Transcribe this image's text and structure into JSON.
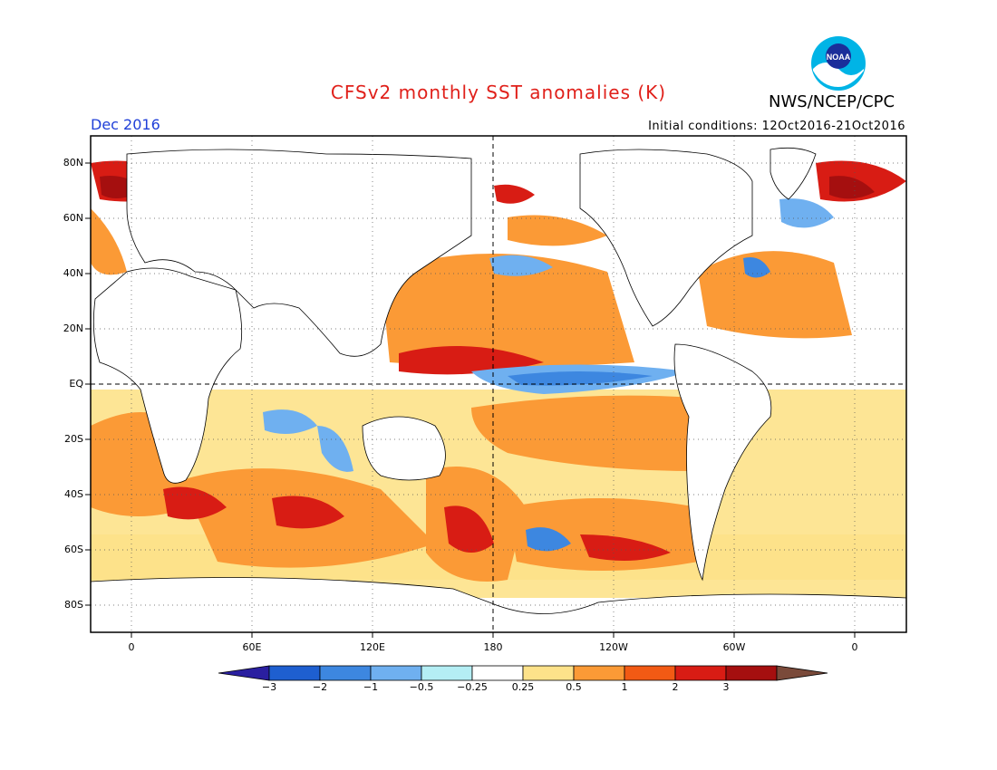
{
  "title": "CFSv2 monthly SST anomalies (K)",
  "period": "Dec 2016",
  "initial_conditions": "Initial conditions: 12Oct2016-21Oct2016",
  "agency": "NWS/NCEP/CPC",
  "logo_text": "NOAA",
  "map": {
    "lat_labels": [
      "80N",
      "60N",
      "40N",
      "20N",
      "EQ",
      "20S",
      "40S",
      "60S",
      "80S"
    ],
    "lon_labels": [
      "0",
      "60E",
      "120E",
      "180",
      "120W",
      "60W",
      "0"
    ],
    "lon_range": [
      -20,
      380
    ],
    "lat_range": [
      -90,
      90
    ]
  },
  "colorbar": {
    "labels": [
      "-3",
      "-2",
      "-1",
      "-0.5",
      "-0.25",
      "0.25",
      "0.5",
      "1",
      "2",
      "3"
    ],
    "colors": [
      "#2a1fa0",
      "#1e5fd0",
      "#3d87e0",
      "#6fb0f0",
      "#b4eef4",
      "#ffffff",
      "#fde28a",
      "#fb9a36",
      "#f25a14",
      "#d81c14",
      "#a50f0f",
      "#7a4a3a"
    ]
  }
}
